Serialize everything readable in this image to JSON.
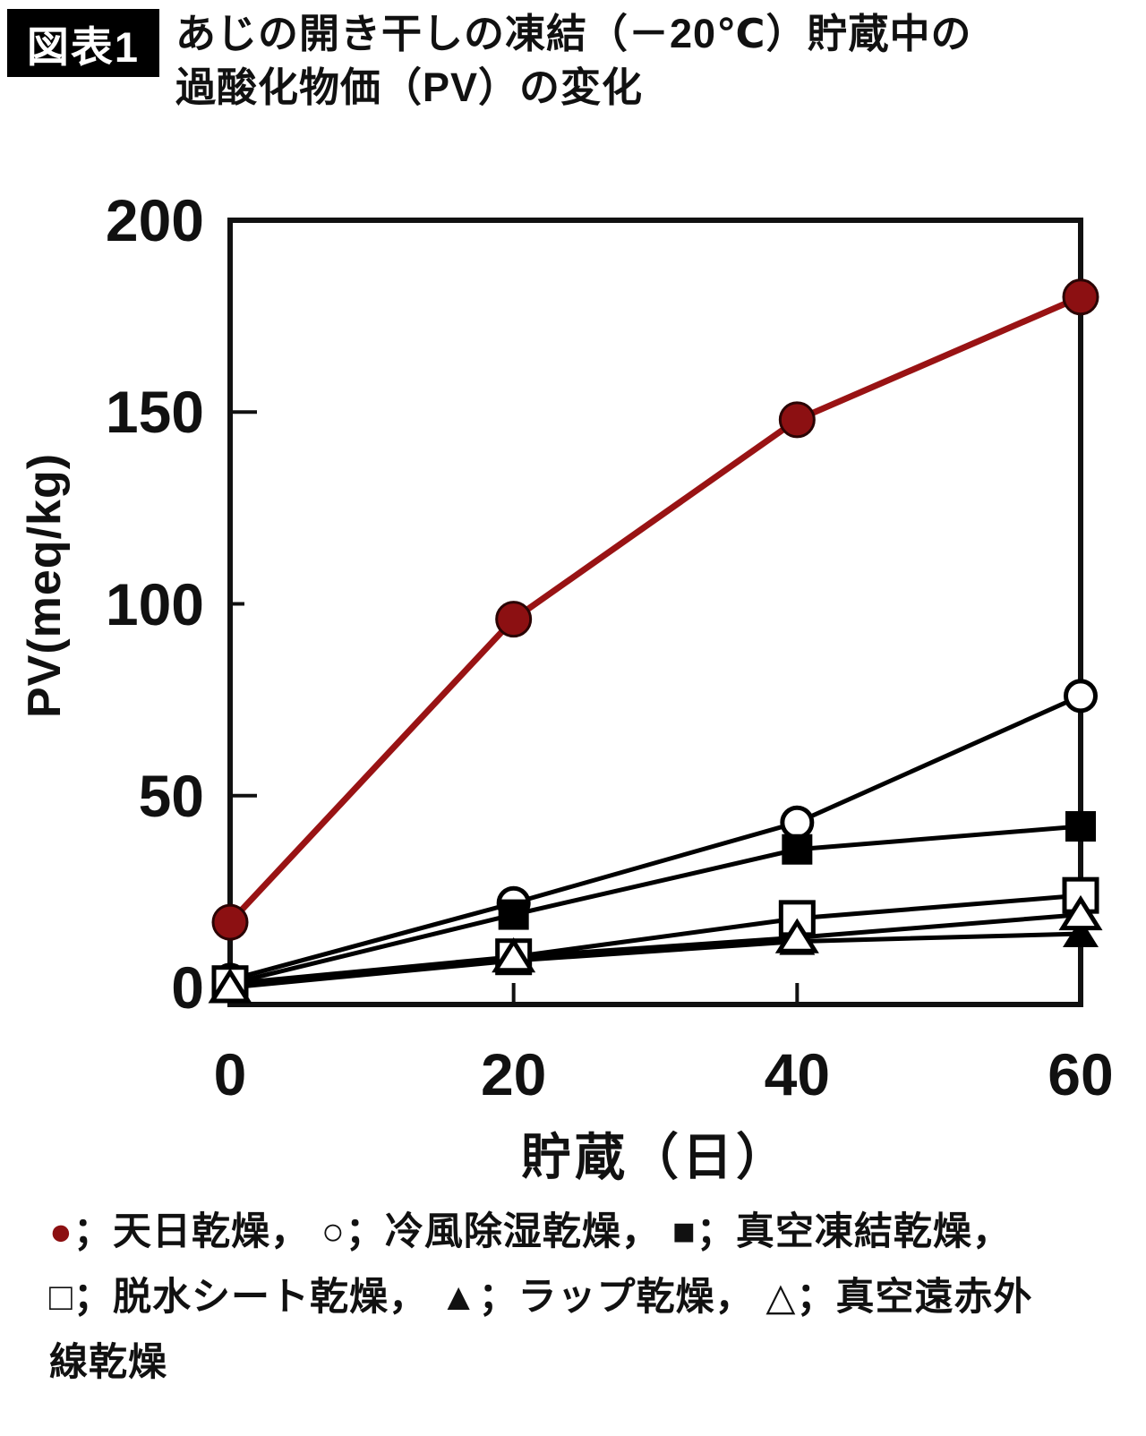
{
  "header": {
    "badge": "図表1",
    "title_line1": "あじの開き干しの凍結（－20℃）貯蔵中の",
    "title_line2": "過酸化物価（PV）の変化"
  },
  "colors": {
    "background": "#ffffff",
    "ink": "#111111",
    "accent_red": "#8c1012",
    "accent_red_dark": "#2a0404"
  },
  "chart_data": {
    "type": "line",
    "x": [
      0,
      20,
      40,
      60
    ],
    "xlabel": "貯蔵（日）",
    "ylabel": "PV(meq/kg)",
    "ylim": [
      0,
      200
    ],
    "xlim": [
      0,
      60
    ],
    "yticks": [
      0,
      50,
      100,
      150,
      200
    ],
    "xticks": [
      0,
      20,
      40,
      60
    ],
    "grid": false,
    "legend_position": "below",
    "series": [
      {
        "name": "天日乾燥",
        "marker": "filled-circle",
        "color": "#8c1012",
        "values": [
          17,
          96,
          148,
          180
        ]
      },
      {
        "name": "冷風除湿乾燥",
        "marker": "open-circle",
        "color": "#000000",
        "values": [
          2,
          22,
          43,
          76
        ]
      },
      {
        "name": "真空凍結乾燥",
        "marker": "filled-square",
        "color": "#000000",
        "values": [
          1,
          19,
          36,
          42
        ]
      },
      {
        "name": "脱水シート乾燥",
        "marker": "open-square",
        "color": "#000000",
        "values": [
          1,
          8,
          18,
          24
        ]
      },
      {
        "name": "ラップ乾燥",
        "marker": "filled-triangle",
        "color": "#000000",
        "values": [
          0,
          7,
          12,
          14
        ]
      },
      {
        "name": "真空遠赤外線乾燥",
        "marker": "open-triangle",
        "color": "#000000",
        "values": [
          0,
          8,
          13,
          19
        ]
      }
    ]
  },
  "legend": {
    "red_marker": "●",
    "line1_rest": "；天日乾燥， ○；冷風除湿乾燥， ■；真空凍結乾燥，",
    "line2": "□；脱水シート乾燥， ▲；ラップ乾燥， △；真空遠赤外",
    "line3": "線乾燥"
  }
}
